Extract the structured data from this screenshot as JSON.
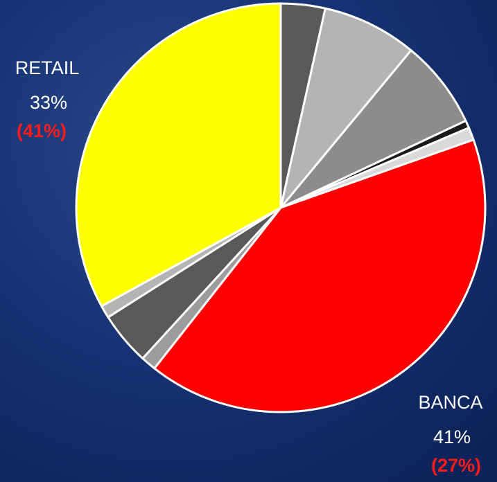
{
  "chart_data": {
    "type": "pie",
    "categories": [
      null,
      null,
      null,
      null,
      null,
      "BANCA",
      null,
      null,
      null,
      "RETAIL"
    ],
    "values": [
      3.5,
      7.5,
      7,
      0.6,
      1,
      41,
      1.2,
      4.2,
      1,
      33
    ],
    "value_labels": [
      null,
      null,
      null,
      null,
      null,
      "41%",
      null,
      null,
      null,
      "33%"
    ],
    "previous_values": [
      null,
      null,
      null,
      null,
      null,
      27,
      null,
      null,
      null,
      41
    ],
    "previous_labels": [
      null,
      null,
      null,
      null,
      null,
      "(27%)",
      null,
      null,
      null,
      "(41%)"
    ],
    "colors": [
      "#595959",
      "#b4b4b4",
      "#8c8c8c",
      "#1a1a1a",
      "#d9d9d9",
      "#ff0000",
      "#9c9c9c",
      "#595959",
      "#b4b4b4",
      "#ffff00"
    ]
  }
}
